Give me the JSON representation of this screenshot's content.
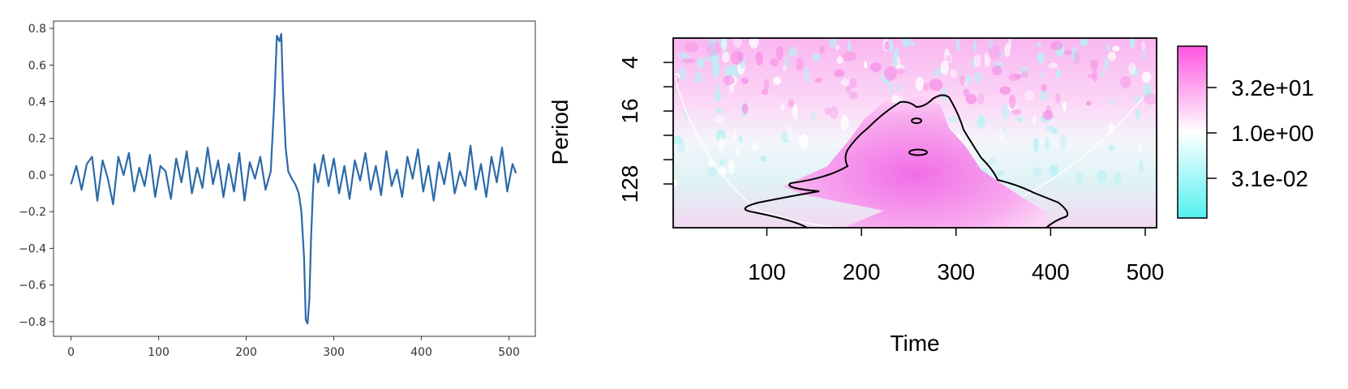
{
  "chart_data": [
    {
      "type": "line",
      "title": "",
      "xlabel": "",
      "ylabel": "",
      "xlim": [
        -20,
        530
      ],
      "ylim": [
        -0.88,
        0.84
      ],
      "x_ticks": [
        0,
        100,
        200,
        300,
        400,
        500
      ],
      "x_tick_labels": [
        "0",
        "100",
        "200",
        "300",
        "400",
        "500"
      ],
      "y_ticks": [
        0.8,
        0.6,
        0.4,
        0.2,
        0.0,
        -0.2,
        -0.4,
        -0.6,
        -0.8
      ],
      "y_tick_labels": [
        "0.8",
        "0.6",
        "0.4",
        "0.2",
        "0.0",
        "−0.2",
        "−0.4",
        "−0.6",
        "−0.8"
      ],
      "grid": false,
      "series_color": "#2b6aa8",
      "series": [
        {
          "x": [
            0,
            6,
            12,
            18,
            24,
            30,
            36,
            42,
            48,
            54,
            60,
            66,
            72,
            78,
            84,
            90,
            96,
            102,
            108,
            114,
            120,
            126,
            132,
            138,
            144,
            150,
            156,
            162,
            168,
            174,
            180,
            186,
            192,
            198,
            204,
            210,
            216,
            222,
            228,
            232,
            235,
            238,
            240,
            242,
            245,
            248,
            252,
            256,
            260,
            263,
            266,
            268,
            270,
            272,
            274,
            276,
            278,
            282,
            288,
            294,
            300,
            306,
            312,
            318,
            324,
            330,
            336,
            342,
            348,
            354,
            360,
            366,
            372,
            378,
            384,
            390,
            396,
            402,
            408,
            414,
            420,
            426,
            432,
            438,
            444,
            450,
            456,
            462,
            468,
            474,
            480,
            486,
            492,
            498,
            504,
            508
          ],
          "y": [
            -0.05,
            0.05,
            -0.08,
            0.06,
            0.1,
            -0.14,
            0.08,
            -0.02,
            -0.16,
            0.1,
            0.0,
            0.12,
            -0.09,
            0.04,
            -0.06,
            0.11,
            -0.12,
            0.05,
            0.02,
            -0.13,
            0.09,
            -0.04,
            0.13,
            -0.1,
            0.04,
            -0.07,
            0.15,
            -0.05,
            0.08,
            -0.12,
            0.06,
            -0.09,
            0.12,
            -0.14,
            0.07,
            -0.02,
            0.1,
            -0.08,
            0.02,
            0.4,
            0.76,
            0.73,
            0.77,
            0.45,
            0.15,
            0.02,
            -0.02,
            -0.05,
            -0.1,
            -0.2,
            -0.45,
            -0.79,
            -0.81,
            -0.68,
            -0.35,
            -0.1,
            0.06,
            -0.04,
            0.11,
            -0.06,
            0.09,
            -0.1,
            0.05,
            -0.13,
            0.08,
            -0.03,
            0.12,
            -0.08,
            0.05,
            -0.11,
            0.13,
            -0.06,
            0.03,
            -0.12,
            0.1,
            -0.02,
            0.14,
            -0.09,
            0.05,
            -0.14,
            0.07,
            -0.05,
            0.12,
            -0.1,
            0.02,
            -0.06,
            0.16,
            -0.08,
            0.06,
            -0.12,
            0.1,
            -0.04,
            0.15,
            -0.09,
            0.06,
            0.01
          ]
        }
      ]
    },
    {
      "type": "heatmap",
      "title": "",
      "xlabel": "Time",
      "ylabel": "Period",
      "xlim": [
        1,
        512
      ],
      "ylim_log2": [
        1,
        8.8
      ],
      "x_ticks": [
        100,
        200,
        300,
        400,
        500
      ],
      "x_tick_labels": [
        "100",
        "200",
        "300",
        "400",
        "500"
      ],
      "y_ticks_log2": [
        2,
        3,
        4,
        5,
        6,
        7
      ],
      "y_tick_labels": [
        "4",
        "",
        "16",
        "",
        "",
        "128"
      ],
      "colorbar": {
        "tick_labels": [
          "3.2e+01",
          "1.0e+00",
          "3.1e-02"
        ],
        "colors": [
          "#ff55e0",
          "#ffffff",
          "#55f0f0"
        ]
      },
      "contour_feature": "significant power region centred near Time 250, Period 8–128",
      "grid": false
    }
  ]
}
